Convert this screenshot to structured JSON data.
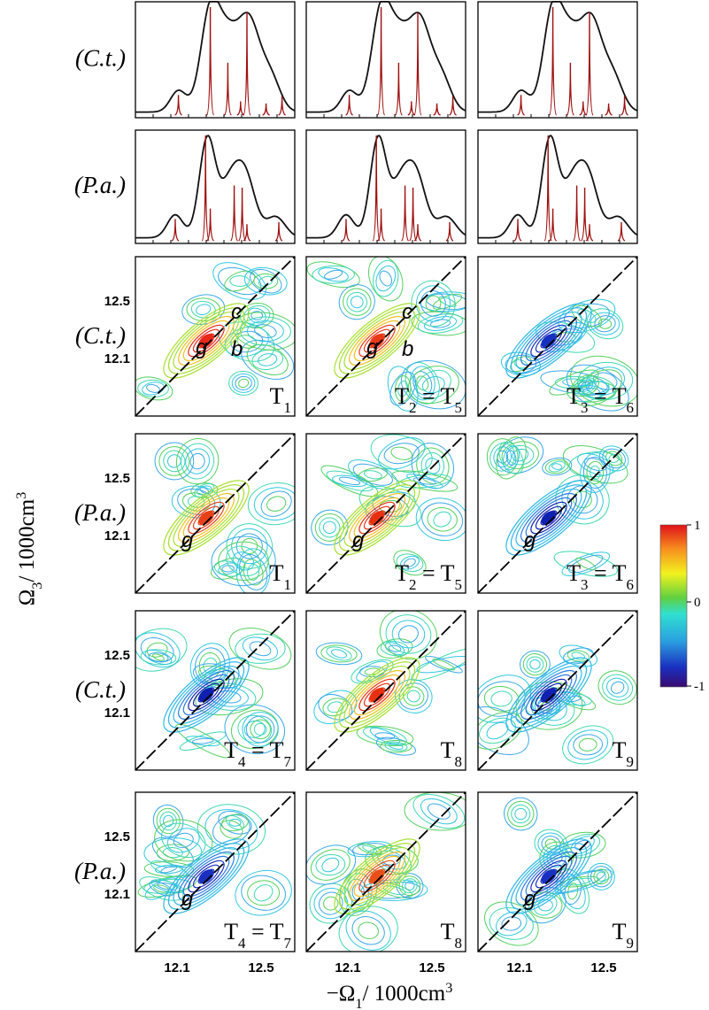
{
  "figure": {
    "rows": [
      {
        "label": "(C.t.)"
      },
      {
        "label": "(P.a.)"
      },
      {
        "label": "(C.t.)",
        "panels": [
          {
            "label": [
              "T",
              "1"
            ],
            "points": [
              "g",
              "c",
              "b"
            ]
          },
          {
            "label": [
              "T",
              "2",
              " = T",
              "5"
            ],
            "points": [
              "g",
              "c",
              "b"
            ]
          },
          {
            "label": [
              "T",
              "3",
              " = T",
              "6"
            ]
          }
        ]
      },
      {
        "label": "(P.a.)",
        "panels": [
          {
            "label": [
              "T",
              "1"
            ],
            "points": [
              "g"
            ]
          },
          {
            "label": [
              "T",
              "2",
              " = T",
              "5"
            ],
            "points": [
              "g"
            ]
          },
          {
            "label": [
              "T",
              "3",
              " = T",
              "6"
            ],
            "points": [
              "g"
            ]
          }
        ]
      },
      {
        "label": "(C.t.)",
        "panels": [
          {
            "label": [
              "T",
              "4",
              " = T",
              "7"
            ]
          },
          {
            "label": [
              "T",
              "8"
            ]
          },
          {
            "label": [
              "T",
              "9"
            ]
          }
        ]
      },
      {
        "label": "(P.a.)",
        "panels": [
          {
            "label": [
              "T",
              "4",
              " = T",
              "7"
            ],
            "points": [
              "g"
            ]
          },
          {
            "label": [
              "T",
              "8"
            ]
          },
          {
            "label": [
              "T",
              "9"
            ],
            "points": [
              "g"
            ]
          }
        ]
      }
    ],
    "y_ticks": [
      "12.5",
      "12.1"
    ],
    "x_ticks": [
      "12.1",
      "12.5"
    ],
    "x_label": [
      "−Ω",
      "1",
      "/ 1000cm",
      "3"
    ],
    "y_label": [
      "Ω",
      "3",
      "/ 1000cm",
      "3"
    ],
    "colorbar": {
      "ticks": [
        "1",
        "0",
        "-1"
      ]
    }
  }
}
